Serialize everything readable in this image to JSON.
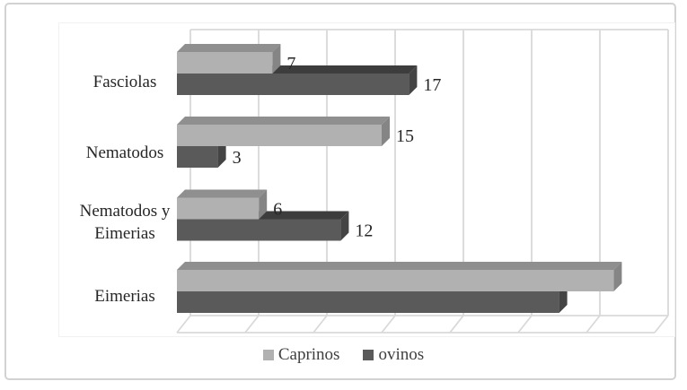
{
  "chart_data": {
    "type": "bar",
    "orientation": "horizontal",
    "effect": "3d",
    "title": "",
    "xlabel": "",
    "ylabel": "",
    "categories": [
      "Fasciolas",
      "Nematodos",
      "Nematodos y Eimerias",
      "Eimerias"
    ],
    "series": [
      {
        "name": "Caprinos",
        "values": [
          7,
          15,
          6,
          32
        ],
        "data_labels": [
          "7",
          "15",
          "6",
          ""
        ],
        "color": "#b1b1b1",
        "top_color": "#8f8f8f",
        "side_color": "#858585"
      },
      {
        "name": "ovinos",
        "values": [
          17,
          3,
          12,
          28
        ],
        "data_labels": [
          "17",
          "3",
          "12",
          ""
        ],
        "color": "#5a5a5a",
        "top_color": "#3d3d3d",
        "side_color": "#444444"
      }
    ],
    "xlim": [
      0,
      35
    ],
    "grid_interval": 5,
    "grid": true,
    "gridline_color": "#d9d9d9",
    "value_axis_labels_shown": false,
    "legend_position": "bottom",
    "data_label_color": "#262626"
  }
}
